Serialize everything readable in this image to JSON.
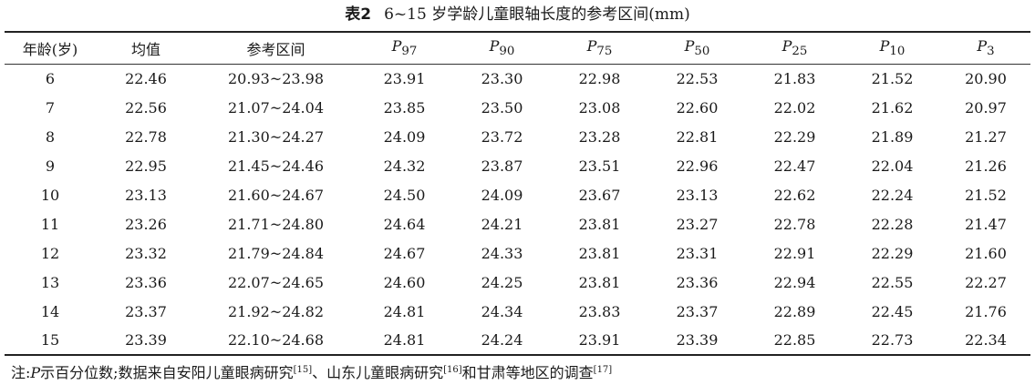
{
  "caption": {
    "label": "表2",
    "title": "6~15 岁学龄儿童眼轴长度的参考区间(mm)"
  },
  "table": {
    "headers": [
      {
        "text": "年龄(岁)",
        "name": "col-age"
      },
      {
        "text": "均值",
        "name": "col-mean"
      },
      {
        "text": "参考区间",
        "name": "col-range"
      },
      {
        "text": "P",
        "sub": "97",
        "name": "col-p97"
      },
      {
        "text": "P",
        "sub": "90",
        "name": "col-p90"
      },
      {
        "text": "P",
        "sub": "75",
        "name": "col-p75"
      },
      {
        "text": "P",
        "sub": "50",
        "name": "col-p50"
      },
      {
        "text": "P",
        "sub": "25",
        "name": "col-p25"
      },
      {
        "text": "P",
        "sub": "10",
        "name": "col-p10"
      },
      {
        "text": "P",
        "sub": "3",
        "name": "col-p3"
      }
    ],
    "rows": [
      [
        "6",
        "22.46",
        "20.93~23.98",
        "23.91",
        "23.30",
        "22.98",
        "22.53",
        "21.83",
        "21.52",
        "20.90"
      ],
      [
        "7",
        "22.56",
        "21.07~24.04",
        "23.85",
        "23.50",
        "23.08",
        "22.60",
        "22.02",
        "21.62",
        "20.97"
      ],
      [
        "8",
        "22.78",
        "21.30~24.27",
        "24.09",
        "23.72",
        "23.28",
        "22.81",
        "22.29",
        "21.89",
        "21.27"
      ],
      [
        "9",
        "22.95",
        "21.45~24.46",
        "24.32",
        "23.87",
        "23.51",
        "22.96",
        "22.47",
        "22.04",
        "21.26"
      ],
      [
        "10",
        "23.13",
        "21.60~24.67",
        "24.50",
        "24.09",
        "23.67",
        "23.13",
        "22.62",
        "22.24",
        "21.52"
      ],
      [
        "11",
        "23.26",
        "21.71~24.80",
        "24.64",
        "24.21",
        "23.81",
        "23.27",
        "22.78",
        "22.28",
        "21.47"
      ],
      [
        "12",
        "23.32",
        "21.79~24.84",
        "24.67",
        "24.33",
        "23.81",
        "23.31",
        "22.91",
        "22.29",
        "21.60"
      ],
      [
        "13",
        "23.36",
        "22.07~24.65",
        "24.60",
        "24.25",
        "23.81",
        "23.36",
        "22.94",
        "22.55",
        "22.27"
      ],
      [
        "14",
        "23.37",
        "21.92~24.82",
        "24.81",
        "24.34",
        "23.83",
        "23.37",
        "22.89",
        "22.45",
        "21.76"
      ],
      [
        "15",
        "23.39",
        "22.10~24.68",
        "24.81",
        "24.24",
        "23.91",
        "23.39",
        "22.85",
        "22.73",
        "22.34"
      ]
    ]
  },
  "note": {
    "prefix": "注:",
    "p_symbol": "P",
    "text1": "示百分位数;数据来自安阳儿童眼病研究",
    "ref1": "[15]",
    "text2": "、山东儿童眼病研究",
    "ref2": "[16]",
    "text3": "和甘肃等地区的调查",
    "ref3": "[17]"
  }
}
